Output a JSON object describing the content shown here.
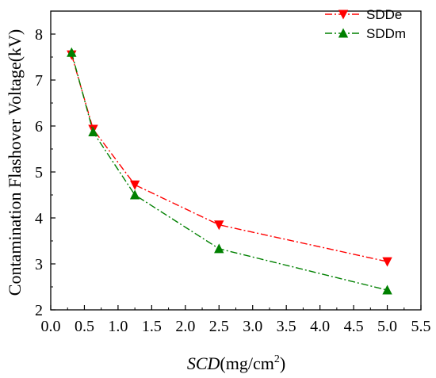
{
  "chart_data": {
    "type": "line",
    "xlabel": "SCD",
    "xlabel_unit": "(mg/cm",
    "xlabel_sup": "2",
    "xlabel_close": ")",
    "ylabel": "Contamination Flashover Voltage(kV)",
    "xlim": [
      0.0,
      5.5
    ],
    "ylim": [
      2,
      8.5
    ],
    "xticks": [
      0.0,
      0.5,
      1.0,
      1.5,
      2.0,
      2.5,
      3.0,
      3.5,
      4.0,
      4.5,
      5.0,
      5.5
    ],
    "xtick_labels": [
      "0.0",
      "0.5",
      "1.0",
      "1.5",
      "2.0",
      "2.5",
      "3.0",
      "3.5",
      "4.0",
      "4.5",
      "5.0",
      "5.5"
    ],
    "yticks": [
      2,
      3,
      4,
      5,
      6,
      7,
      8
    ],
    "ytick_labels": [
      "2",
      "3",
      "4",
      "5",
      "6",
      "7",
      "8"
    ],
    "grid": false,
    "legend_position": "top-right",
    "series": [
      {
        "name": "SDDe",
        "color": "#ff0000",
        "marker": "triangle-down",
        "line_style": "dash-dot",
        "x": [
          0.31,
          0.63,
          1.25,
          2.5,
          5.0
        ],
        "y": [
          7.55,
          5.93,
          4.72,
          3.85,
          3.05
        ]
      },
      {
        "name": "SDDm",
        "color": "#008000",
        "marker": "triangle-up",
        "line_style": "dash-dot",
        "x": [
          0.31,
          0.63,
          1.25,
          2.5,
          5.0
        ],
        "y": [
          7.6,
          5.87,
          4.5,
          3.33,
          2.43
        ]
      }
    ]
  }
}
